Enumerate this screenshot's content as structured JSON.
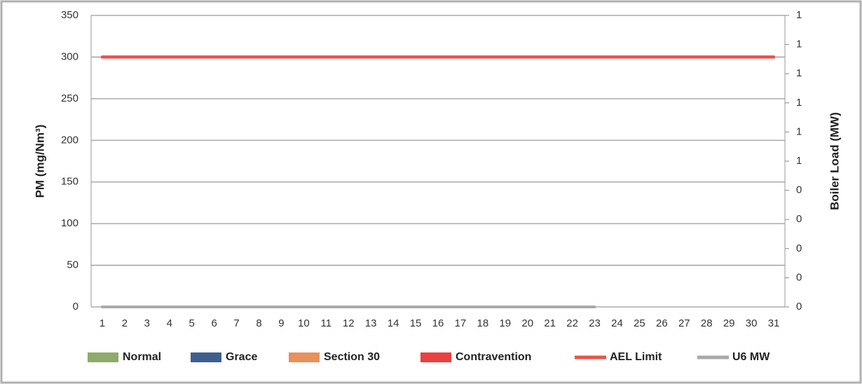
{
  "chart_data": {
    "type": "bar",
    "y_label": "PM (mg/Nm³)",
    "y2_label": "Boiler Load (MW)",
    "categories": [
      "1",
      "2",
      "3",
      "4",
      "5",
      "6",
      "7",
      "8",
      "9",
      "10",
      "11",
      "12",
      "13",
      "14",
      "15",
      "16",
      "17",
      "18",
      "19",
      "20",
      "21",
      "22",
      "23",
      "24",
      "25",
      "26",
      "27",
      "28",
      "29",
      "30",
      "31"
    ],
    "ylim": [
      0,
      350
    ],
    "yticks": [
      0,
      50,
      100,
      150,
      200,
      250,
      300,
      350
    ],
    "y2lim": [
      0,
      1.2
    ],
    "y2ticks": [
      {
        "value": 0,
        "label": "0"
      },
      {
        "value": 0.12,
        "label": "0"
      },
      {
        "value": 0.24,
        "label": "0"
      },
      {
        "value": 0.36,
        "label": "0"
      },
      {
        "value": 0.48,
        "label": "0"
      },
      {
        "value": 0.6,
        "label": "1"
      },
      {
        "value": 0.72,
        "label": "1"
      },
      {
        "value": 0.84,
        "label": "1"
      },
      {
        "value": 0.96,
        "label": "1"
      },
      {
        "value": 1.08,
        "label": "1"
      },
      {
        "value": 1.2,
        "label": "1"
      }
    ],
    "grid": true,
    "legend": "bottom",
    "series": [
      {
        "name": "Normal",
        "type": "bar",
        "color": "#8fab6b",
        "values": [
          0,
          0,
          0,
          0,
          0,
          0,
          0,
          0,
          0,
          0,
          0,
          0,
          0,
          0,
          0,
          0,
          0,
          0,
          0,
          0,
          0,
          0,
          0,
          0,
          0,
          0,
          0,
          0,
          0,
          0,
          0
        ]
      },
      {
        "name": "Grace",
        "type": "bar",
        "color": "#3e5f8e",
        "values": [
          0,
          0,
          0,
          0,
          0,
          0,
          0,
          0,
          0,
          0,
          0,
          0,
          0,
          0,
          0,
          0,
          0,
          0,
          0,
          0,
          0,
          0,
          0,
          0,
          0,
          0,
          0,
          0,
          0,
          0,
          0
        ]
      },
      {
        "name": "Section 30",
        "type": "bar",
        "color": "#e8915a",
        "values": [
          0,
          0,
          0,
          0,
          0,
          0,
          0,
          0,
          0,
          0,
          0,
          0,
          0,
          0,
          0,
          0,
          0,
          0,
          0,
          0,
          0,
          0,
          0,
          0,
          0,
          0,
          0,
          0,
          0,
          0,
          0
        ]
      },
      {
        "name": "Contravention",
        "type": "bar",
        "color": "#ec3f3f",
        "values": [
          0,
          0,
          0,
          0,
          0,
          0,
          0,
          0,
          0,
          0,
          0,
          0,
          0,
          0,
          0,
          0,
          0,
          0,
          0,
          0,
          0,
          0,
          0,
          0,
          0,
          0,
          0,
          0,
          0,
          0,
          0
        ]
      },
      {
        "name": "AEL Limit",
        "type": "line",
        "color": "#e8524a",
        "values": [
          300,
          300,
          300,
          300,
          300,
          300,
          300,
          300,
          300,
          300,
          300,
          300,
          300,
          300,
          300,
          300,
          300,
          300,
          300,
          300,
          300,
          300,
          300,
          300,
          300,
          300,
          300,
          300,
          300,
          300,
          300
        ]
      },
      {
        "name": "U6 MW",
        "type": "line",
        "axis": "y2",
        "color": "#a8a8a8",
        "values": [
          0,
          0,
          0,
          0,
          0,
          0,
          0,
          0,
          0,
          0,
          0,
          0,
          0,
          0,
          0,
          0,
          0,
          0,
          0,
          0,
          0,
          0,
          0,
          null,
          null,
          null,
          null,
          null,
          null,
          null,
          null
        ]
      }
    ]
  }
}
